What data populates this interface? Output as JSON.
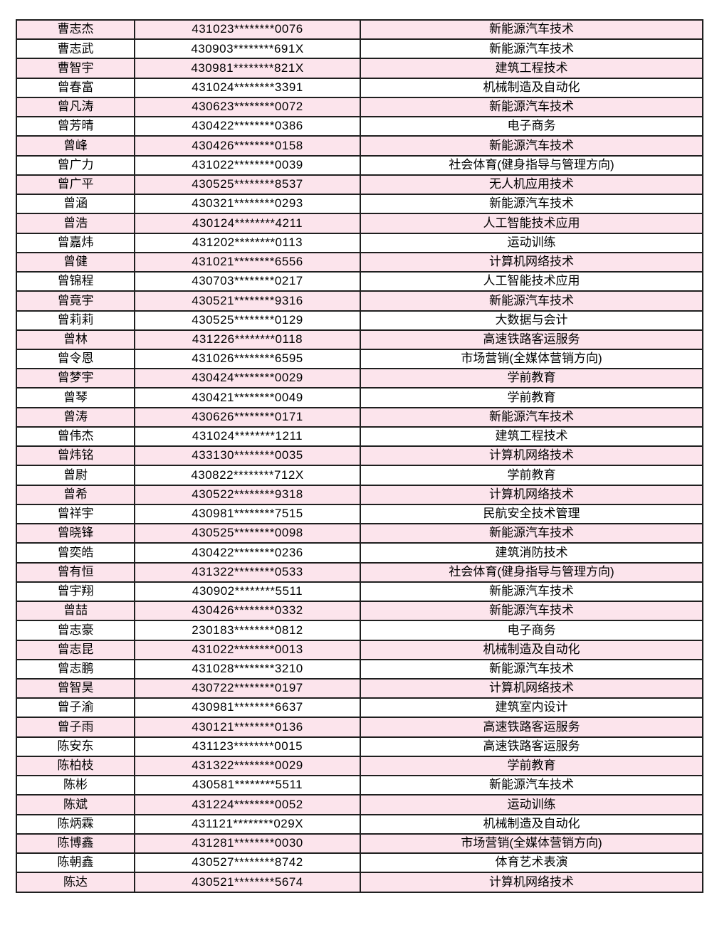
{
  "colors": {
    "row_alt": "#fce4ec",
    "row_base": "#ffffff",
    "border": "#1f1f1f",
    "text": "#000000"
  },
  "table": {
    "columns": [
      "name",
      "id_number",
      "major"
    ],
    "rows": [
      {
        "name": "曹志杰",
        "id": "431023********0076",
        "major": "新能源汽车技术"
      },
      {
        "name": "曹志武",
        "id": "430903********691X",
        "major": "新能源汽车技术"
      },
      {
        "name": "曹智宇",
        "id": "430981********821X",
        "major": "建筑工程技术"
      },
      {
        "name": "曾春富",
        "id": "431024********3391",
        "major": "机械制造及自动化"
      },
      {
        "name": "曾凡涛",
        "id": "430623********0072",
        "major": "新能源汽车技术"
      },
      {
        "name": "曾芳晴",
        "id": "430422********0386",
        "major": "电子商务"
      },
      {
        "name": "曾峰",
        "id": "430426********0158",
        "major": "新能源汽车技术"
      },
      {
        "name": "曾广力",
        "id": "431022********0039",
        "major": "社会体育(健身指导与管理方向)"
      },
      {
        "name": "曾广平",
        "id": "430525********8537",
        "major": "无人机应用技术"
      },
      {
        "name": "曾涵",
        "id": "430321********0293",
        "major": "新能源汽车技术"
      },
      {
        "name": "曾浩",
        "id": "430124********4211",
        "major": "人工智能技术应用"
      },
      {
        "name": "曾嘉炜",
        "id": "431202********0113",
        "major": "运动训练"
      },
      {
        "name": "曾健",
        "id": "431021********6556",
        "major": "计算机网络技术"
      },
      {
        "name": "曾锦程",
        "id": "430703********0217",
        "major": "人工智能技术应用"
      },
      {
        "name": "曾竟宇",
        "id": "430521********9316",
        "major": "新能源汽车技术"
      },
      {
        "name": "曾莉莉",
        "id": "430525********0129",
        "major": "大数据与会计"
      },
      {
        "name": "曾林",
        "id": "431226********0118",
        "major": "高速铁路客运服务"
      },
      {
        "name": "曾令恩",
        "id": "431026********6595",
        "major": "市场营销(全媒体营销方向)"
      },
      {
        "name": "曾梦宇",
        "id": "430424********0029",
        "major": "学前教育"
      },
      {
        "name": "曾琴",
        "id": "430421********0049",
        "major": "学前教育"
      },
      {
        "name": "曾涛",
        "id": "430626********0171",
        "major": "新能源汽车技术"
      },
      {
        "name": "曾伟杰",
        "id": "431024********1211",
        "major": "建筑工程技术"
      },
      {
        "name": "曾炜铭",
        "id": "433130********0035",
        "major": "计算机网络技术"
      },
      {
        "name": "曾尉",
        "id": "430822********712X",
        "major": "学前教育"
      },
      {
        "name": "曾希",
        "id": "430522********9318",
        "major": "计算机网络技术"
      },
      {
        "name": "曾祥宇",
        "id": "430981********7515",
        "major": "民航安全技术管理"
      },
      {
        "name": "曾晓锋",
        "id": "430525********0098",
        "major": "新能源汽车技术"
      },
      {
        "name": "曾奕皓",
        "id": "430422********0236",
        "major": "建筑消防技术"
      },
      {
        "name": "曾有恒",
        "id": "431322********0533",
        "major": "社会体育(健身指导与管理方向)"
      },
      {
        "name": "曾宇翔",
        "id": "430902********5511",
        "major": "新能源汽车技术"
      },
      {
        "name": "曾喆",
        "id": "430426********0332",
        "major": "新能源汽车技术"
      },
      {
        "name": "曾志豪",
        "id": "230183********0812",
        "major": "电子商务"
      },
      {
        "name": "曾志昆",
        "id": "431022********0013",
        "major": "机械制造及自动化"
      },
      {
        "name": "曾志鹏",
        "id": "431028********3210",
        "major": "新能源汽车技术"
      },
      {
        "name": "曾智昊",
        "id": "430722********0197",
        "major": "计算机网络技术"
      },
      {
        "name": "曾子渝",
        "id": "430981********6637",
        "major": "建筑室内设计"
      },
      {
        "name": "曾子雨",
        "id": "430121********0136",
        "major": "高速铁路客运服务"
      },
      {
        "name": "陈安东",
        "id": "431123********0015",
        "major": "高速铁路客运服务"
      },
      {
        "name": "陈柏枝",
        "id": "431322********0029",
        "major": "学前教育"
      },
      {
        "name": "陈彬",
        "id": "430581********5511",
        "major": "新能源汽车技术"
      },
      {
        "name": "陈斌",
        "id": "431224********0052",
        "major": "运动训练"
      },
      {
        "name": "陈炳霖",
        "id": "431121********029X",
        "major": "机械制造及自动化"
      },
      {
        "name": "陈博鑫",
        "id": "431281********0030",
        "major": "市场营销(全媒体营销方向)"
      },
      {
        "name": "陈朝鑫",
        "id": "430527********8742",
        "major": "体育艺术表演"
      },
      {
        "name": "陈达",
        "id": "430521********5674",
        "major": "计算机网络技术"
      }
    ]
  }
}
